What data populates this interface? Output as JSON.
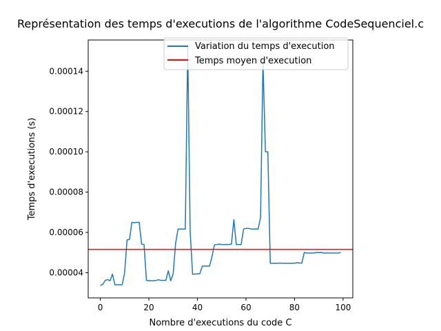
{
  "chart_data": {
    "type": "line",
    "title": "Représentation des temps d'executions de l'algorithme CodeSequenciel.c",
    "xlabel": "Nombre d'executions du code C",
    "ylabel": "Temps d'executions (s)",
    "xlim": [
      -5,
      104
    ],
    "ylim": [
      2.75e-05,
      0.0001555
    ],
    "grid": false,
    "legend_position": "top-right",
    "x_ticks": [
      0,
      20,
      40,
      60,
      80,
      100
    ],
    "x_tick_labels": [
      "0",
      "20",
      "40",
      "60",
      "80",
      "100"
    ],
    "y_ticks": [
      4e-05,
      6e-05,
      8e-05,
      0.0001,
      0.00012,
      0.00014
    ],
    "y_tick_labels": [
      "0.00004",
      "0.00006",
      "0.00008",
      "0.00010",
      "0.00012",
      "0.00014"
    ],
    "series": [
      {
        "name": "Variation du temps d'execution",
        "color": "#1f77b4",
        "x": [
          0,
          1,
          2,
          3,
          4,
          5,
          6,
          7,
          8,
          9,
          10,
          11,
          12,
          13,
          14,
          15,
          16,
          17,
          18,
          19,
          20,
          21,
          22,
          23,
          24,
          25,
          26,
          27,
          28,
          29,
          30,
          31,
          32,
          33,
          34,
          35,
          36,
          37,
          38,
          39,
          40,
          41,
          42,
          43,
          44,
          45,
          46,
          47,
          48,
          49,
          50,
          51,
          52,
          53,
          54,
          55,
          56,
          57,
          58,
          59,
          60,
          61,
          62,
          63,
          64,
          65,
          66,
          67,
          68,
          69,
          70,
          71,
          72,
          73,
          74,
          75,
          76,
          77,
          78,
          79,
          80,
          81,
          82,
          83,
          84,
          85,
          86,
          87,
          88,
          89,
          90,
          91,
          92,
          93,
          94,
          95,
          96,
          97,
          98,
          99
        ],
        "y": [
          3.37e-05,
          3.42e-05,
          3.62e-05,
          3.66e-05,
          3.6e-05,
          3.93e-05,
          3.4e-05,
          3.4e-05,
          3.4e-05,
          3.4e-05,
          4e-05,
          5.63e-05,
          5.65e-05,
          6.5e-05,
          6.48e-05,
          6.5e-05,
          6.5e-05,
          5.42e-05,
          5.4e-05,
          3.62e-05,
          3.6e-05,
          3.6e-05,
          3.6e-05,
          3.62e-05,
          3.65e-05,
          3.62e-05,
          3.62e-05,
          3.62e-05,
          4.1e-05,
          3.6e-05,
          3.95e-05,
          5.45e-05,
          6.17e-05,
          6.17e-05,
          6.17e-05,
          6.17e-05,
          0.000153,
          6.05e-05,
          3.93e-05,
          3.93e-05,
          3.95e-05,
          3.95e-05,
          4.33e-05,
          4.33e-05,
          4.33e-05,
          4.33e-05,
          4.8e-05,
          5.38e-05,
          5.4e-05,
          5.42e-05,
          5.4e-05,
          5.4e-05,
          5.4e-05,
          5.4e-05,
          5.42e-05,
          6.63e-05,
          5.4e-05,
          5.4e-05,
          5.4e-05,
          6.17e-05,
          6.2e-05,
          6.2e-05,
          6.17e-05,
          6.17e-05,
          6.17e-05,
          6.17e-05,
          6.75e-05,
          0.000145,
          0.0001,
          0.0001,
          4.47e-05,
          4.47e-05,
          4.47e-05,
          4.47e-05,
          4.48e-05,
          4.47e-05,
          4.47e-05,
          4.47e-05,
          4.47e-05,
          4.47e-05,
          4.47e-05,
          4.5e-05,
          4.48e-05,
          4.48e-05,
          5e-05,
          4.98e-05,
          4.98e-05,
          4.98e-05,
          4.98e-05,
          5e-05,
          5e-05,
          5e-05,
          4.98e-05,
          4.98e-05,
          4.98e-05,
          4.98e-05,
          4.98e-05,
          4.98e-05,
          4.98e-05,
          5e-05
        ]
      },
      {
        "name": "Temps moyen d'execution",
        "color": "#ff0000",
        "type": "hline",
        "value": 5.16e-05
      }
    ]
  }
}
